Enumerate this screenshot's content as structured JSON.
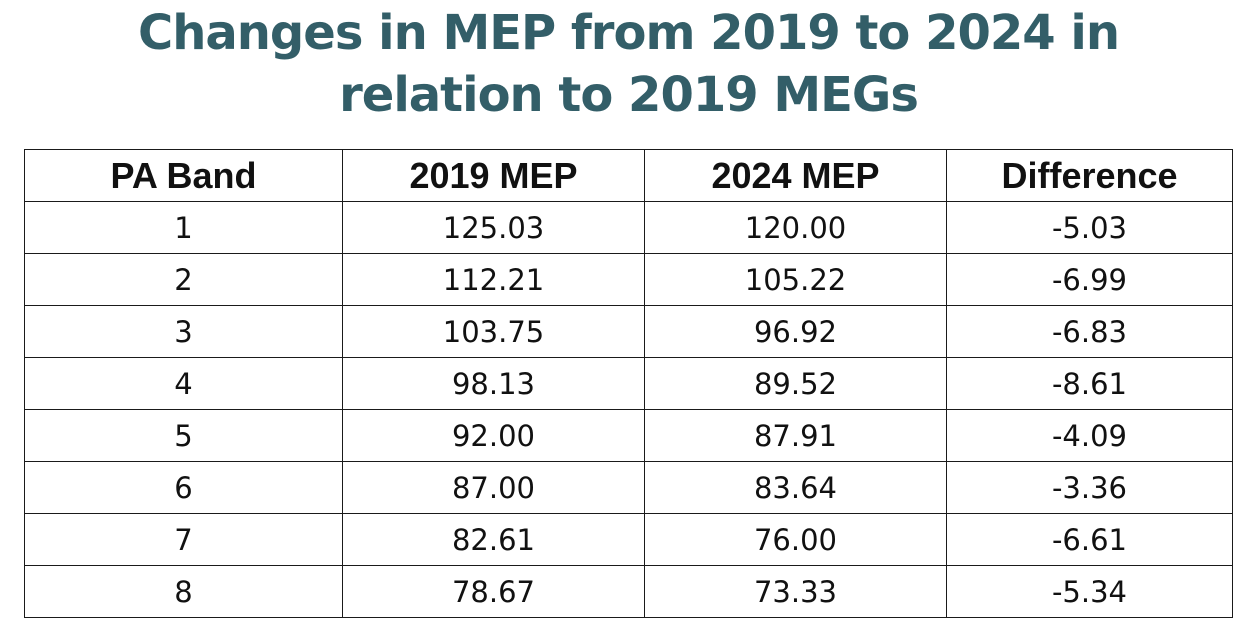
{
  "title": {
    "line1": "Changes in MEP from 2019 to 2024 in",
    "line2": "relation to 2019 MEGs"
  },
  "colors": {
    "title": "#335e68",
    "text": "#111111",
    "border": "#1a1a1a",
    "background": "#ffffff"
  },
  "table": {
    "headers": [
      "PA Band",
      "2019 MEP",
      "2024 MEP",
      "Difference"
    ],
    "rows": [
      [
        "1",
        "125.03",
        "120.00",
        "-5.03"
      ],
      [
        "2",
        "112.21",
        "105.22",
        "-6.99"
      ],
      [
        "3",
        "103.75",
        "96.92",
        "-6.83"
      ],
      [
        "4",
        "98.13",
        "89.52",
        "-8.61"
      ],
      [
        "5",
        "92.00",
        "87.91",
        "-4.09"
      ],
      [
        "6",
        "87.00",
        "83.64",
        "-3.36"
      ],
      [
        "7",
        "82.61",
        "76.00",
        "-6.61"
      ],
      [
        "8",
        "78.67",
        "73.33",
        "-5.34"
      ]
    ]
  }
}
